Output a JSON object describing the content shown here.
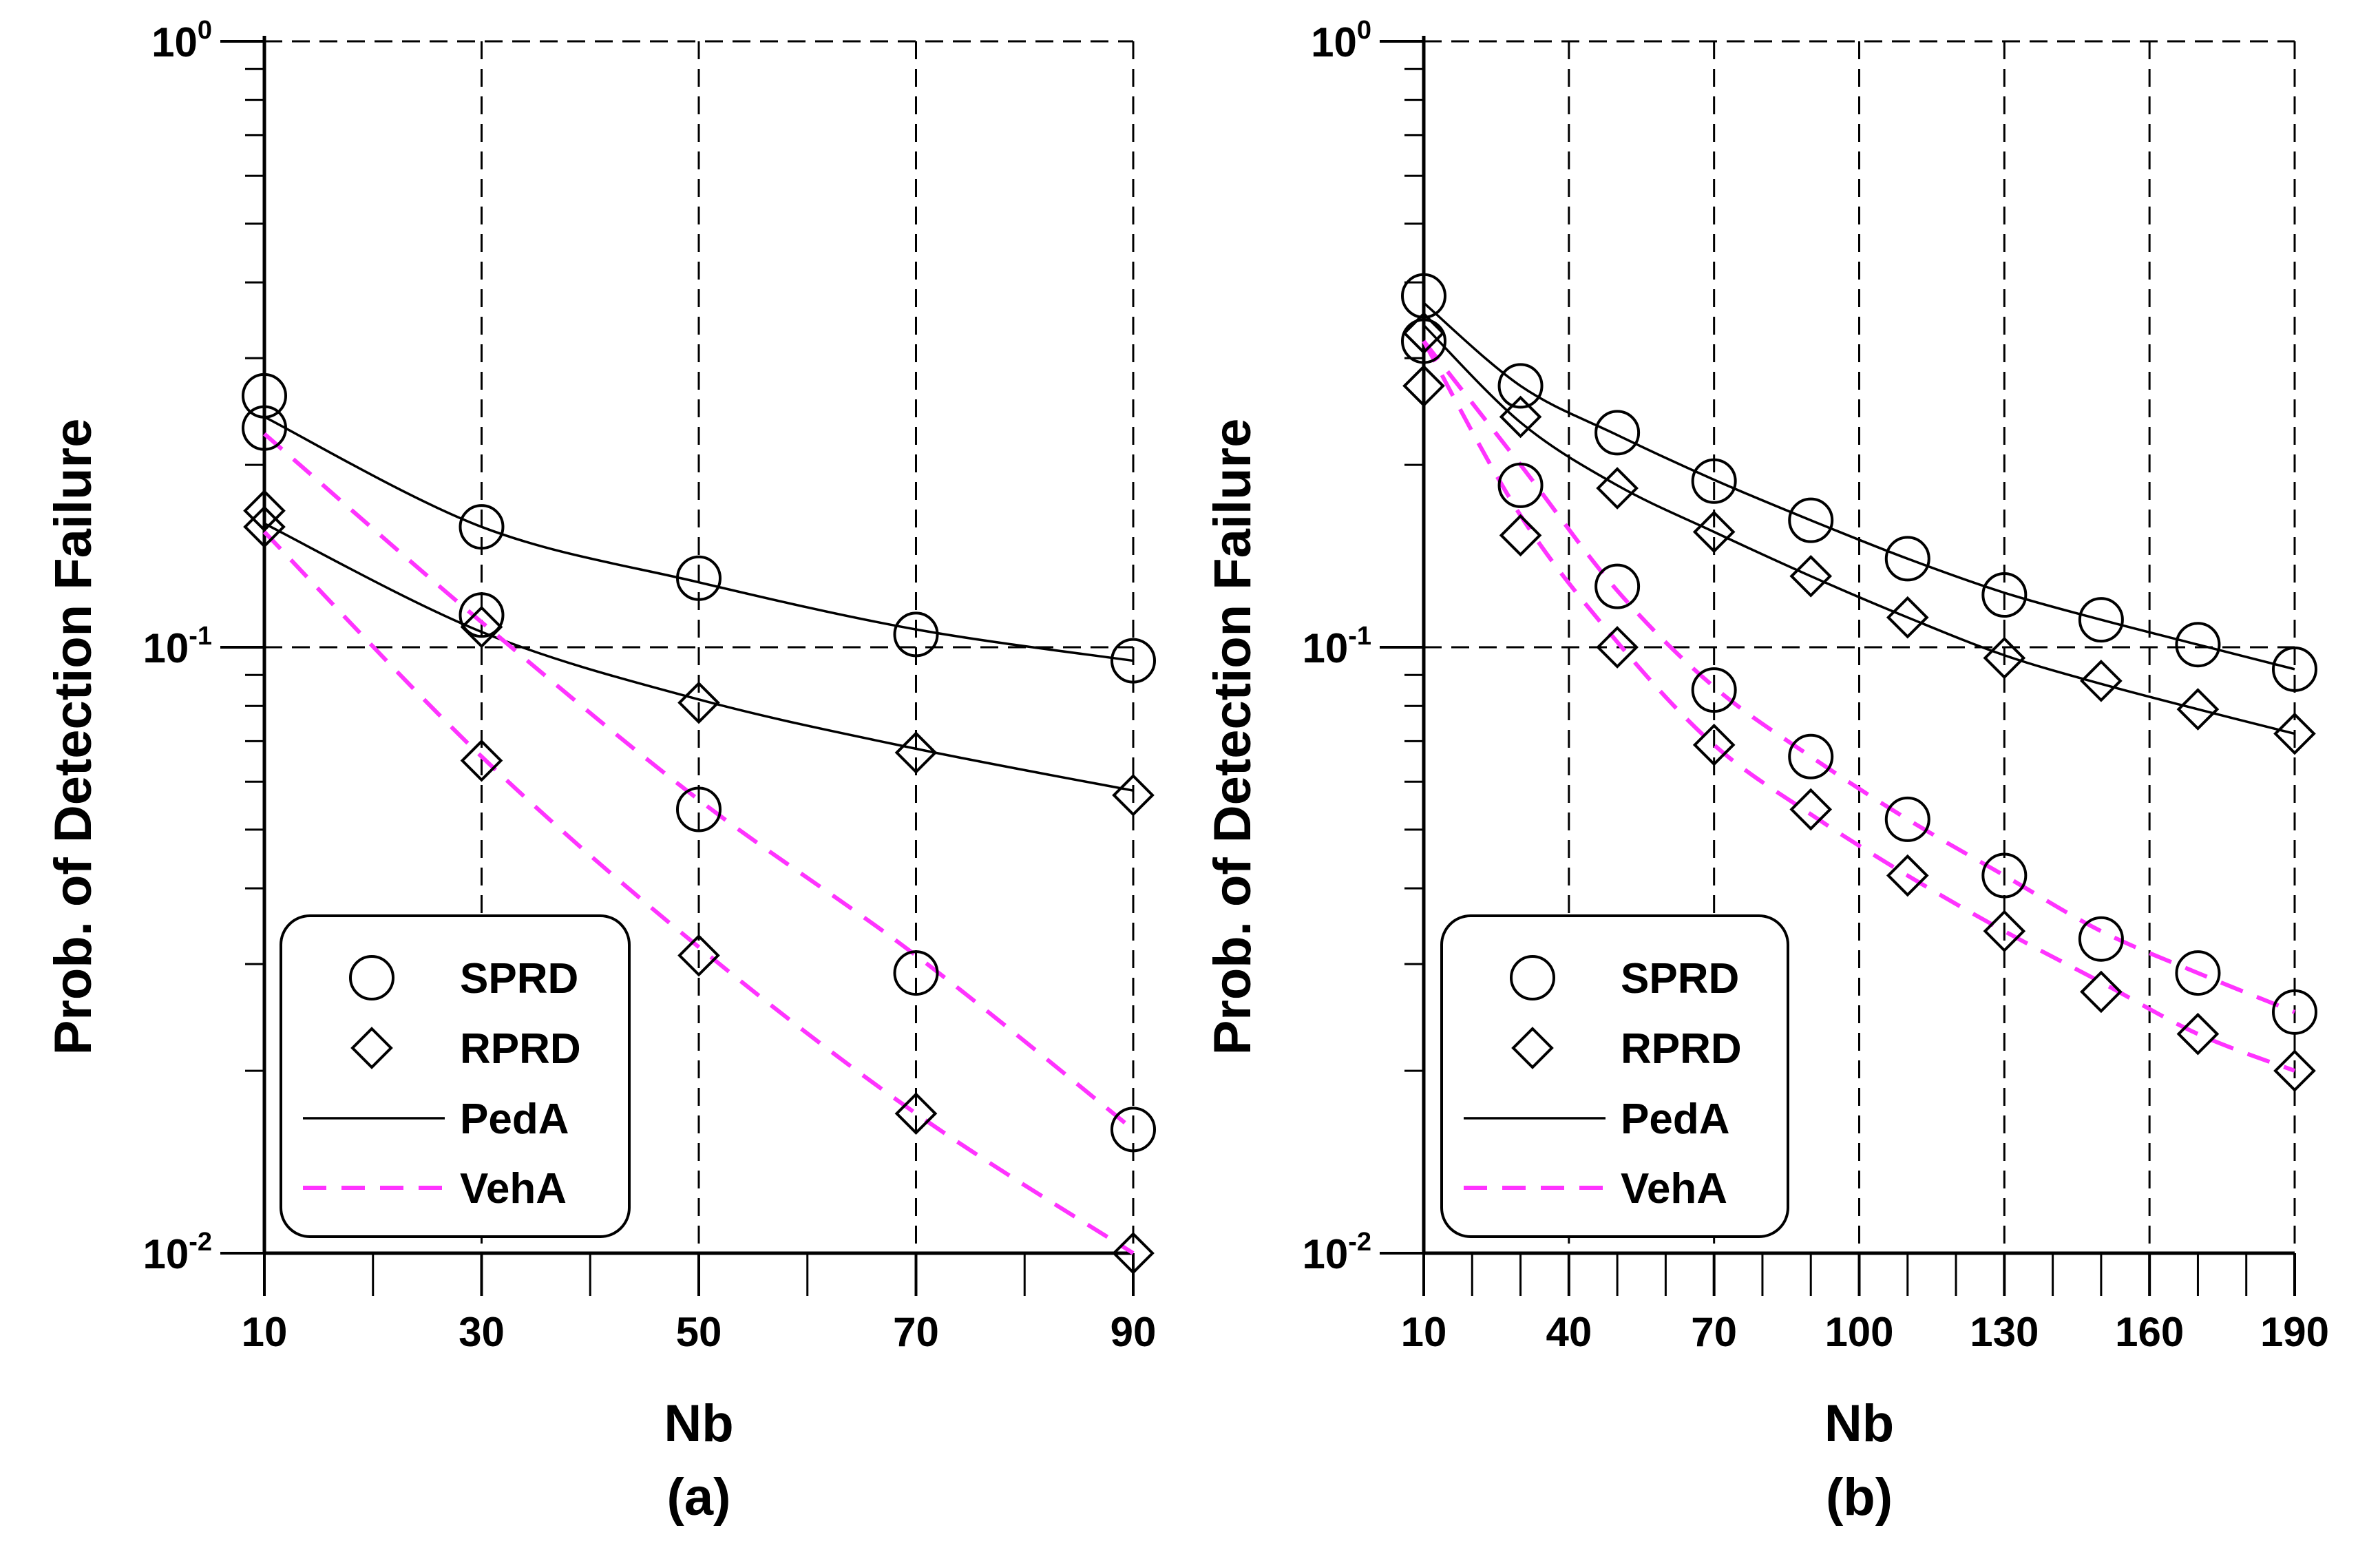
{
  "chart_data": [
    {
      "type": "scatter",
      "panel_label": "(a)",
      "xlabel": "Nb",
      "ylabel": "Prob. of Detection Failure",
      "xlim": [
        10,
        90
      ],
      "ylim": [
        0.01,
        1
      ],
      "yscale": "log",
      "xticks": [
        10,
        30,
        50,
        70,
        90
      ],
      "xtick_labels": [
        "10",
        "30",
        "50",
        "70",
        "90"
      ],
      "minor_xticks": [
        20,
        40,
        60,
        80
      ],
      "yticks": [
        {
          "base": "10",
          "exp": "-2",
          "value": 0.01
        },
        {
          "base": "10",
          "exp": "-1",
          "value": 0.1
        },
        {
          "base": "10",
          "exp": "0",
          "value": 1
        }
      ],
      "grid": true,
      "legend_position": "bottom-left",
      "legend": [
        {
          "label": "SPRD",
          "kind": "circle"
        },
        {
          "label": "RPRD",
          "kind": "diamond"
        },
        {
          "label": "PedA",
          "kind": "solid"
        },
        {
          "label": "VehA",
          "kind": "dashed"
        }
      ],
      "markers": [
        {
          "name": "SPRD PedA",
          "symbol": "circle",
          "x": [
            10,
            30,
            50,
            70,
            90
          ],
          "y": [
            0.26,
            0.158,
            0.13,
            0.105,
            0.095
          ]
        },
        {
          "name": "RPRD PedA",
          "symbol": "diamond",
          "x": [
            10,
            30,
            50,
            70,
            90
          ],
          "y": [
            0.168,
            0.108,
            0.081,
            0.067,
            0.057
          ]
        },
        {
          "name": "SPRD VehA",
          "symbol": "circle",
          "x": [
            10,
            30,
            50,
            70,
            90
          ],
          "y": [
            0.23,
            0.113,
            0.054,
            0.029,
            0.016
          ]
        },
        {
          "name": "RPRD VehA",
          "symbol": "diamond",
          "x": [
            10,
            30,
            50,
            70,
            90
          ],
          "y": [
            0.158,
            0.065,
            0.031,
            0.017,
            0.01
          ]
        }
      ],
      "lines": [
        {
          "name": "SPRD PedA fit",
          "style": "solid",
          "x": [
            10,
            30,
            50,
            70,
            90
          ],
          "y": [
            0.24,
            0.158,
            0.128,
            0.107,
            0.095
          ]
        },
        {
          "name": "RPRD PedA fit",
          "style": "solid",
          "x": [
            10,
            30,
            50,
            70,
            90
          ],
          "y": [
            0.16,
            0.106,
            0.082,
            0.068,
            0.058
          ]
        },
        {
          "name": "SPRD VehA fit",
          "style": "dashed",
          "x": [
            10,
            30,
            50,
            70,
            90
          ],
          "y": [
            0.225,
            0.11,
            0.056,
            0.031,
            0.016
          ]
        },
        {
          "name": "RPRD VehA fit",
          "style": "dashed",
          "x": [
            10,
            30,
            50,
            70,
            90
          ],
          "y": [
            0.155,
            0.066,
            0.032,
            0.017,
            0.01
          ]
        }
      ]
    },
    {
      "type": "scatter",
      "panel_label": "(b)",
      "xlabel": "Nb",
      "ylabel": "Prob. of Detection Failure",
      "xlim": [
        10,
        190
      ],
      "ylim": [
        0.01,
        1
      ],
      "yscale": "log",
      "xticks": [
        10,
        40,
        70,
        100,
        130,
        160,
        190
      ],
      "xtick_labels": [
        "10",
        "40",
        "70",
        "100",
        "130",
        "160",
        "190"
      ],
      "minor_xticks": [
        20,
        30,
        50,
        60,
        80,
        90,
        110,
        120,
        140,
        150,
        170,
        180
      ],
      "yticks": [
        {
          "base": "10",
          "exp": "-2",
          "value": 0.01
        },
        {
          "base": "10",
          "exp": "-1",
          "value": 0.1
        },
        {
          "base": "10",
          "exp": "0",
          "value": 1
        }
      ],
      "grid": true,
      "legend_position": "bottom-left",
      "legend": [
        {
          "label": "SPRD",
          "kind": "circle"
        },
        {
          "label": "RPRD",
          "kind": "diamond"
        },
        {
          "label": "PedA",
          "kind": "solid"
        },
        {
          "label": "VehA",
          "kind": "dashed"
        }
      ],
      "markers": [
        {
          "name": "SPRD PedA",
          "symbol": "circle",
          "x": [
            10,
            30,
            50,
            70,
            90,
            110,
            130,
            150,
            170,
            190
          ],
          "y": [
            0.38,
            0.27,
            0.226,
            0.188,
            0.162,
            0.14,
            0.122,
            0.111,
            0.101,
            0.092
          ]
        },
        {
          "name": "RPRD PedA",
          "symbol": "diamond",
          "x": [
            10,
            30,
            50,
            70,
            90,
            110,
            130,
            150,
            170,
            190
          ],
          "y": [
            0.33,
            0.24,
            0.183,
            0.155,
            0.131,
            0.112,
            0.096,
            0.088,
            0.079,
            0.072
          ]
        },
        {
          "name": "SPRD VehA",
          "symbol": "circle",
          "x": [
            10,
            30,
            50,
            70,
            90,
            110,
            130,
            150,
            170,
            190
          ],
          "y": [
            0.32,
            0.185,
            0.126,
            0.085,
            0.066,
            0.052,
            0.042,
            0.033,
            0.029,
            0.025
          ]
        },
        {
          "name": "RPRD VehA",
          "symbol": "diamond",
          "x": [
            10,
            30,
            50,
            70,
            90,
            110,
            130,
            150,
            170,
            190
          ],
          "y": [
            0.27,
            0.153,
            0.1,
            0.069,
            0.054,
            0.042,
            0.034,
            0.027,
            0.023,
            0.02
          ]
        }
      ],
      "lines": [
        {
          "name": "SPRD PedA fit",
          "style": "solid",
          "x": [
            10,
            30,
            50,
            70,
            90,
            110,
            130,
            150,
            170,
            190
          ],
          "y": [
            0.37,
            0.27,
            0.224,
            0.189,
            0.162,
            0.14,
            0.123,
            0.111,
            0.101,
            0.092
          ]
        },
        {
          "name": "RPRD PedA fit",
          "style": "solid",
          "x": [
            10,
            30,
            50,
            70,
            90,
            110,
            130,
            150,
            170,
            190
          ],
          "y": [
            0.34,
            0.235,
            0.185,
            0.155,
            0.131,
            0.112,
            0.097,
            0.087,
            0.079,
            0.072
          ]
        },
        {
          "name": "SPRD VehA fit",
          "style": "dashed",
          "x": [
            10,
            30,
            50,
            70,
            90,
            110,
            130,
            150,
            170,
            190
          ],
          "y": [
            0.32,
            0.2,
            0.124,
            0.086,
            0.066,
            0.052,
            0.042,
            0.034,
            0.029,
            0.025
          ]
        },
        {
          "name": "RPRD VehA fit",
          "style": "dashed",
          "x": [
            10,
            30,
            50,
            70,
            90,
            110,
            130,
            150,
            170,
            190
          ],
          "y": [
            0.32,
            0.165,
            0.102,
            0.069,
            0.053,
            0.042,
            0.034,
            0.028,
            0.023,
            0.02
          ]
        }
      ]
    }
  ],
  "colors": {
    "axis": "#000000",
    "ped_line": "#000000",
    "veh_line": "#ff33ff",
    "grid": "#000000",
    "background": "#ffffff"
  }
}
